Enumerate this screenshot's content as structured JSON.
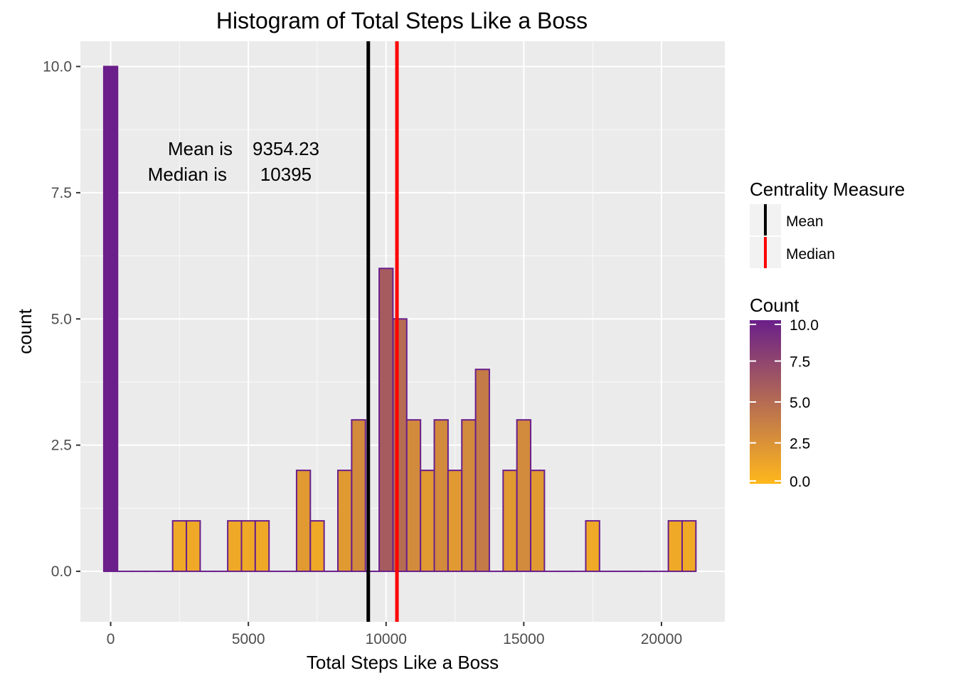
{
  "chart_data": {
    "type": "bar",
    "title": "Histogram of Total Steps Like a Boss",
    "xlabel": "Total Steps Like a Boss",
    "ylabel": "count",
    "xlim": [
      -1100,
      22300
    ],
    "ylim": [
      -1.0,
      10.5
    ],
    "x_ticks": [
      0,
      5000,
      10000,
      15000,
      20000
    ],
    "x_tick_labels": [
      "0",
      "5000",
      "10000",
      "15000",
      "20000"
    ],
    "y_ticks": [
      0,
      2.5,
      5,
      7.5,
      10
    ],
    "y_tick_labels": [
      "0.0",
      "2.5",
      "5.0",
      "7.5",
      "10.0"
    ],
    "grid": true,
    "bin_width": 500,
    "bin_centers": [
      0,
      500,
      1000,
      1500,
      2000,
      2500,
      3000,
      3500,
      4000,
      4500,
      5000,
      5500,
      6000,
      6500,
      7000,
      7500,
      8000,
      8500,
      9000,
      9500,
      10000,
      10500,
      11000,
      11500,
      12000,
      12500,
      13000,
      13500,
      14000,
      14500,
      15000,
      15500,
      16000,
      16500,
      17000,
      17500,
      18000,
      18500,
      19000,
      19500,
      20000,
      20500,
      21000
    ],
    "values": [
      10,
      0,
      0,
      0,
      0,
      1,
      1,
      0,
      0,
      1,
      1,
      1,
      0,
      0,
      2,
      1,
      0,
      2,
      3,
      0,
      6,
      5,
      3,
      2,
      3,
      2,
      3,
      4,
      0,
      2,
      3,
      2,
      0,
      0,
      0,
      1,
      0,
      0,
      0,
      0,
      0,
      1,
      1
    ],
    "bar_outline_color": "#6a1f8a",
    "reference_lines": [
      {
        "name": "Mean",
        "value": 9354.23,
        "color": "#000000"
      },
      {
        "name": "Median",
        "value": 10395,
        "color": "#ff0000"
      }
    ],
    "annotation": {
      "line1_label": "Mean is",
      "line1_value": "9354.23",
      "line2_label": "Median is",
      "line2_value": "10395"
    },
    "legend_lines": {
      "title": "Centrality Measure",
      "items": [
        "Mean",
        "Median"
      ],
      "placement": "right"
    },
    "legend_gradient": {
      "title": "Count",
      "low_color": "#ffb81c",
      "high_color": "#6a1f8a",
      "range": [
        0,
        10
      ],
      "ticks": [
        0,
        2.5,
        5,
        7.5,
        10
      ],
      "tick_labels": [
        "0.0",
        "2.5",
        "5.0",
        "7.5",
        "10.0"
      ],
      "placement": "right"
    }
  }
}
